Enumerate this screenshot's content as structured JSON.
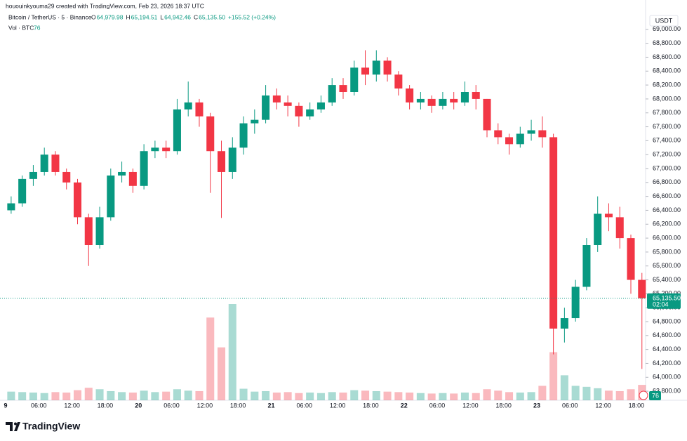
{
  "chart_data": {
    "type": "candlestick",
    "attribution": "hououinkyouma29 created with TradingView.com, Feb 23, 2026 18:37 UTC",
    "symbol": "Bitcoin / TetherUS · 5 · Binance",
    "ohlc_legend": [
      {
        "key": "O",
        "value": "64,979.98"
      },
      {
        "key": "H",
        "value": "65,194.51"
      },
      {
        "key": "L",
        "value": "64,942.46"
      },
      {
        "key": "C",
        "value": "65,135.50"
      }
    ],
    "change": "+155.52 (+0.24%)",
    "volume_legend": "Vol · BTC",
    "volume_legend_value": "76",
    "currency": "USDT",
    "last_price_label": "65,135.50",
    "countdown": "02:04",
    "brand": "TradingView",
    "up_color": "#089981",
    "down_color": "#f23645",
    "categories": [
      "9",
      null,
      null,
      "06:00",
      null,
      null,
      "12:00",
      null,
      null,
      "18:00",
      null,
      null,
      "20",
      null,
      null,
      "06:00",
      null,
      null,
      "12:00",
      null,
      null,
      "18:00",
      null,
      null,
      "21",
      null,
      null,
      "06:00",
      null,
      null,
      "12:00",
      null,
      null,
      "18:00",
      null,
      null,
      "22",
      null,
      null,
      "06:00",
      null,
      null,
      "12:00",
      null,
      null,
      "18:00",
      null,
      null,
      "23",
      null,
      null,
      "06:00",
      null,
      null,
      "12:00",
      null,
      null,
      "18:00"
    ],
    "open": [
      66400,
      66500,
      66850,
      66950,
      67200,
      66950,
      66800,
      66300,
      65900,
      66300,
      66900,
      66950,
      66750,
      67250,
      67300,
      67250,
      67850,
      67950,
      67750,
      67250,
      66950,
      67300,
      67650,
      67700,
      68050,
      67950,
      67900,
      67750,
      67850,
      67950,
      68200,
      68100,
      68450,
      68350,
      68550,
      68350,
      68150,
      67950,
      68000,
      67900,
      68000,
      67950,
      68100,
      68000,
      67550,
      67450,
      67350,
      67500,
      67550,
      67450,
      64700,
      64850,
      65300,
      65900,
      66350,
      66300,
      66000,
      65400
    ],
    "high": [
      66600,
      66900,
      67050,
      67300,
      67250,
      67000,
      66850,
      66350,
      66450,
      67000,
      67100,
      67000,
      67350,
      67400,
      67400,
      68000,
      68250,
      68000,
      67800,
      67400,
      67450,
      67750,
      67850,
      68200,
      68150,
      68050,
      67950,
      67950,
      68050,
      68300,
      68300,
      68550,
      68700,
      68700,
      68600,
      68400,
      68200,
      68100,
      68050,
      68100,
      68100,
      68250,
      68200,
      68000,
      67650,
      67500,
      67600,
      67700,
      67750,
      67500,
      65000,
      65400,
      66000,
      66600,
      66500,
      66450,
      66050,
      65500
    ],
    "low": [
      66350,
      66450,
      66750,
      66900,
      66900,
      66700,
      66200,
      65600,
      65850,
      66250,
      66800,
      66650,
      66700,
      67150,
      67150,
      67200,
      67750,
      67600,
      66650,
      66290,
      66850,
      67200,
      67500,
      67650,
      67850,
      67750,
      67600,
      67700,
      67800,
      67900,
      68000,
      68050,
      68200,
      68250,
      68250,
      68050,
      67850,
      67850,
      67800,
      67850,
      67850,
      67900,
      67850,
      67450,
      67350,
      67200,
      67300,
      67400,
      67300,
      64330,
      64500,
      64800,
      65250,
      65800,
      66100,
      65850,
      65200,
      64120
    ],
    "close": [
      66500,
      66850,
      66950,
      67200,
      66950,
      66800,
      66300,
      65900,
      66300,
      66900,
      66950,
      66750,
      67250,
      67300,
      67250,
      67850,
      67950,
      67750,
      67250,
      66950,
      67300,
      67650,
      67700,
      68050,
      67950,
      67900,
      67750,
      67850,
      67950,
      68200,
      68100,
      68450,
      68350,
      68550,
      68350,
      68150,
      67950,
      68000,
      67900,
      68000,
      67950,
      68100,
      68000,
      67550,
      67450,
      67350,
      67500,
      67550,
      67450,
      64700,
      64850,
      65300,
      65900,
      66350,
      66300,
      66000,
      65400,
      65135.5
    ],
    "volume": [
      180,
      170,
      160,
      150,
      170,
      160,
      210,
      260,
      230,
      190,
      170,
      160,
      200,
      170,
      180,
      230,
      200,
      190,
      1720,
      1100,
      2000,
      240,
      180,
      190,
      160,
      170,
      150,
      160,
      150,
      170,
      160,
      210,
      200,
      190,
      180,
      170,
      160,
      150,
      140,
      150,
      140,
      160,
      150,
      230,
      200,
      170,
      160,
      170,
      300,
      1000,
      520,
      300,
      280,
      250,
      200,
      190,
      230,
      320
    ],
    "vlim": [
      0,
      2000
    ],
    "ylim": [
      63700,
      69200
    ],
    "yticks": [
      {
        "value": 63800,
        "label": "63,800.00"
      },
      {
        "value": 64000,
        "label": "64,000.00"
      },
      {
        "value": 64200,
        "label": "64,200.00"
      },
      {
        "value": 64400,
        "label": "64,400.00"
      },
      {
        "value": 64600,
        "label": "64,600.00"
      },
      {
        "value": 64800,
        "label": "64,800.00"
      },
      {
        "value": 65000,
        "label": "65,000.00"
      },
      {
        "value": 65200,
        "label": "65,200.00"
      },
      {
        "value": 65400,
        "label": "65,400.00"
      },
      {
        "value": 65600,
        "label": "65,600.00"
      },
      {
        "value": 65800,
        "label": "65,800.00"
      },
      {
        "value": 66000,
        "label": "66,000.00"
      },
      {
        "value": 66200,
        "label": "66,200.00"
      },
      {
        "value": 66400,
        "label": "66,400.00"
      },
      {
        "value": 66600,
        "label": "66,600.00"
      },
      {
        "value": 66800,
        "label": "66,800.00"
      },
      {
        "value": 67000,
        "label": "67,000.00"
      },
      {
        "value": 67200,
        "label": "67,200.00"
      },
      {
        "value": 67400,
        "label": "67,400.00"
      },
      {
        "value": 67600,
        "label": "67,600.00"
      },
      {
        "value": 67800,
        "label": "67,800.00"
      },
      {
        "value": 68000,
        "label": "68,000.00"
      },
      {
        "value": 68200,
        "label": "68,200.00"
      },
      {
        "value": 68400,
        "label": "68,400.00"
      },
      {
        "value": 68600,
        "label": "68,600.00"
      },
      {
        "value": 68800,
        "label": "68,800.00"
      },
      {
        "value": 69000,
        "label": "69,000.00"
      }
    ]
  }
}
